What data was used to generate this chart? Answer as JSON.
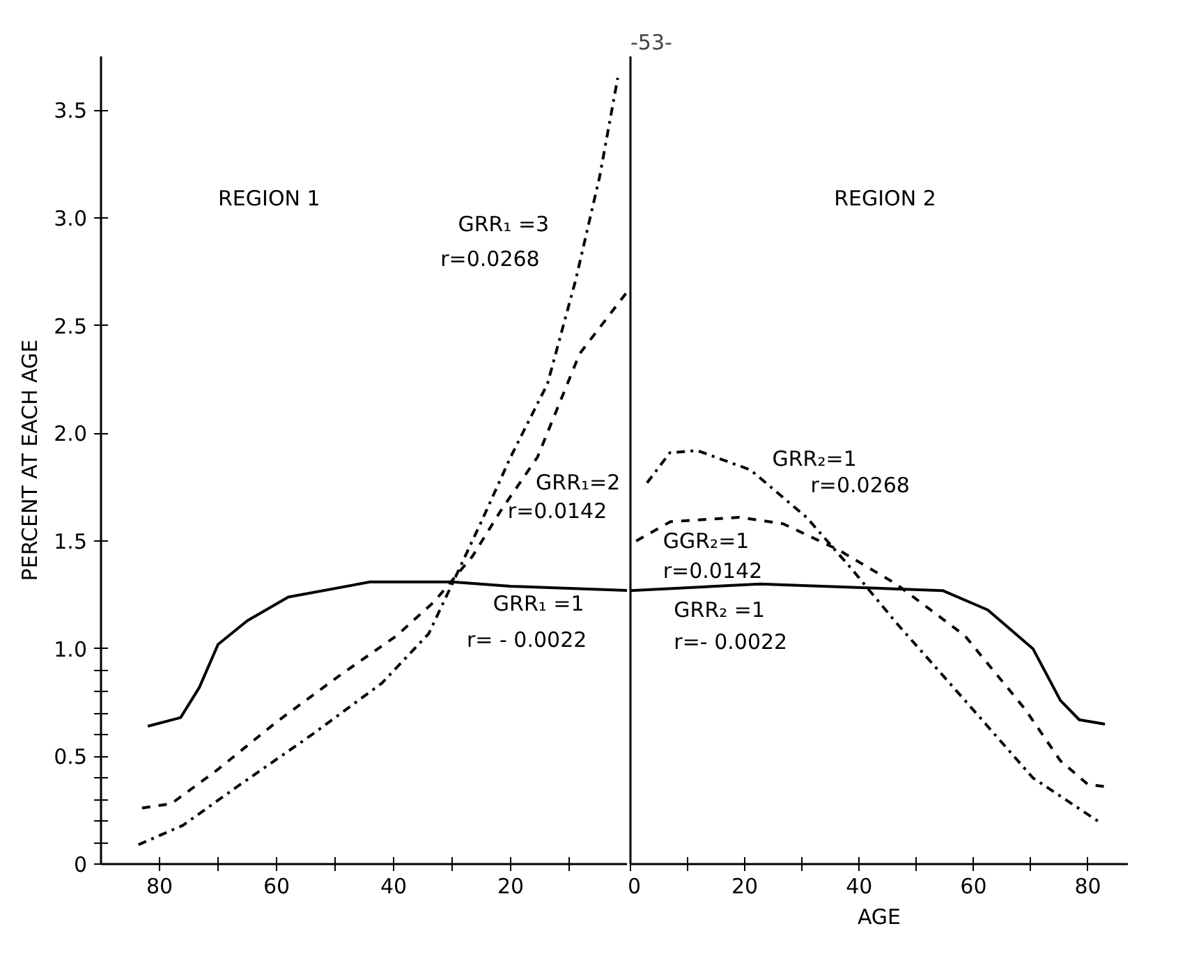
{
  "chart_data": [
    {
      "type": "line",
      "ylabel": "PERCENT AT EACH AGE",
      "xlim": [
        90,
        0
      ],
      "ylim": [
        0,
        3.75
      ],
      "xticks": [
        80,
        {
          "value": 70,
          "label": null
        },
        60,
        {
          "value": 50,
          "label": null
        },
        40,
        {
          "value": 30,
          "label": null
        },
        20,
        {
          "value": 10,
          "label": null
        }
      ],
      "yticks": [
        0,
        {
          "value": 0.1,
          "label": null
        },
        {
          "value": 0.2,
          "label": null
        },
        {
          "value": 0.3,
          "label": null
        },
        {
          "value": 0.4,
          "label": null
        },
        0.5,
        {
          "value": 0.6,
          "label": null
        },
        {
          "value": 0.7,
          "label": null
        },
        {
          "value": 0.8,
          "label": null
        },
        {
          "value": 0.9,
          "label": null
        },
        {
          "value": 1,
          "label": "1.0"
        },
        1.5,
        {
          "value": 2,
          "label": "2.0"
        },
        2.5,
        {
          "value": 3,
          "label": "3.0"
        },
        3.5
      ],
      "series": [
        {
          "color": "#000000",
          "line_style": "solid",
          "x": [
            82,
            76.4,
            73.2,
            70,
            65,
            58,
            44,
            30,
            20,
            0
          ],
          "values": [
            0.64,
            0.68,
            0.82,
            1.02,
            1.13,
            1.24,
            1.31,
            1.31,
            1.29,
            1.27
          ]
        },
        {
          "color": "#000000",
          "line_style": "dashed",
          "x": [
            83,
            78,
            70,
            60,
            49,
            39.5,
            33,
            26.5,
            21.7,
            15.4,
            8.2,
            0
          ],
          "values": [
            0.26,
            0.28,
            0.44,
            0.66,
            0.88,
            1.06,
            1.22,
            1.43,
            1.64,
            1.89,
            2.37,
            2.66
          ]
        },
        {
          "color": "#000000",
          "line_style": "dashdot",
          "x": [
            83.6,
            76,
            66.7,
            54,
            42,
            34,
            30,
            25,
            20,
            13.7,
            8.9,
            4.8,
            1.7
          ],
          "values": [
            0.09,
            0.18,
            0.36,
            0.6,
            0.84,
            1.07,
            1.3,
            1.59,
            1.89,
            2.23,
            2.71,
            3.19,
            3.65
          ]
        }
      ],
      "annotations": [
        "REGION 1",
        "GRR₁ =3",
        "r=0.0268",
        "GRR₁=2",
        "r=0.0142",
        "GRR₁ =1",
        "r= - 0.0022"
      ]
    },
    {
      "type": "line",
      "title": "-53-",
      "xlabel": "AGE",
      "xlim": [
        0,
        87
      ],
      "ylim": [
        0,
        3.75
      ],
      "tick_labels": "x",
      "xticks": [
        0,
        {
          "value": 10,
          "label": null
        },
        20,
        {
          "value": 30,
          "label": null
        },
        40,
        {
          "value": 50,
          "label": null
        },
        60,
        {
          "value": 70,
          "label": null
        },
        80
      ],
      "series": [
        {
          "color": "#000000",
          "line_style": "solid",
          "x": [
            0,
            22.7,
            54.6,
            62.5,
            70.4,
            75.2,
            78.5,
            83
          ],
          "values": [
            1.27,
            1.3,
            1.27,
            1.18,
            1.0,
            0.76,
            0.67,
            0.65
          ]
        },
        {
          "color": "#000000",
          "line_style": "dashed",
          "x": [
            1,
            7,
            19,
            26.7,
            36.3,
            46.5,
            58.5,
            69,
            75.2,
            80,
            83
          ],
          "values": [
            1.5,
            1.59,
            1.61,
            1.58,
            1.46,
            1.3,
            1.06,
            0.72,
            0.48,
            0.37,
            0.36
          ]
        },
        {
          "color": "#000000",
          "line_style": "dashdot",
          "x": [
            2.9,
            6.9,
            11.7,
            21,
            30.8,
            38.7,
            46.5,
            58.5,
            70.4,
            82.3
          ],
          "values": [
            1.77,
            1.91,
            1.92,
            1.83,
            1.61,
            1.37,
            1.12,
            0.76,
            0.4,
            0.19
          ]
        }
      ],
      "annotations": [
        "REGION 2",
        "GRR₂=1",
        "r=0.0268",
        "GGR₂=1",
        "r=0.0142",
        "GRR₂ =1",
        "r=- 0.0022"
      ]
    }
  ]
}
